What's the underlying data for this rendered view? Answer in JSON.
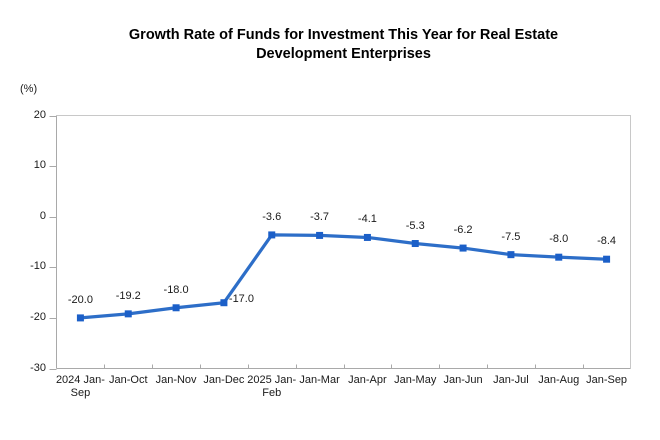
{
  "header": {
    "title": "Growth Rate of Funds for Investment This Year for Real Estate\nDevelopment Enterprises",
    "unit_label": "(%)"
  },
  "chart_data": {
    "type": "line",
    "title": "Growth Rate of Funds for Investment This Year for Real Estate Development Enterprises",
    "xlabel": "",
    "ylabel": "(%)",
    "categories": [
      "2024 Jan-\nSep",
      "Jan-Oct",
      "Jan-Nov",
      "Jan-Dec",
      "2025 Jan-\nFeb",
      "Jan-Mar",
      "Jan-Apr",
      "Jan-May",
      "Jan-Jun",
      "Jan-Jul",
      "Jan-Aug",
      "Jan-Sep"
    ],
    "series": [
      {
        "name": "Growth rate of funds for investment this year",
        "values": [
          -20.0,
          -19.2,
          -18.0,
          -17.0,
          -3.6,
          -3.7,
          -4.1,
          -5.3,
          -6.2,
          -7.5,
          -8.0,
          -8.4
        ]
      }
    ],
    "data_labels": [
      "-20.0",
      "-19.2",
      "-18.0",
      "-17.0",
      "-3.6",
      "-3.7",
      "-4.1",
      "-5.3",
      "-6.2",
      "-7.5",
      "-8.0",
      "-8.4"
    ],
    "data_label_positions": [
      "above",
      "above",
      "above",
      "right",
      "above",
      "above",
      "above",
      "above",
      "above",
      "above",
      "above",
      "above"
    ],
    "y_ticks": [
      {
        "value": 20,
        "label": "20"
      },
      {
        "value": 10,
        "label": "10"
      },
      {
        "value": 0,
        "label": "0"
      },
      {
        "value": -10,
        "label": "-10"
      },
      {
        "value": -20,
        "label": "-20"
      },
      {
        "value": -30,
        "label": "-30"
      }
    ],
    "ylim": [
      -30,
      20
    ],
    "grid": false,
    "legend_position": "none",
    "colors": {
      "line": "#2d6ec8",
      "marker": "#1b5fc8",
      "axis": "#a9a9a9",
      "plot_border": "#c8c8c8",
      "text": "#1a1a1a"
    }
  }
}
